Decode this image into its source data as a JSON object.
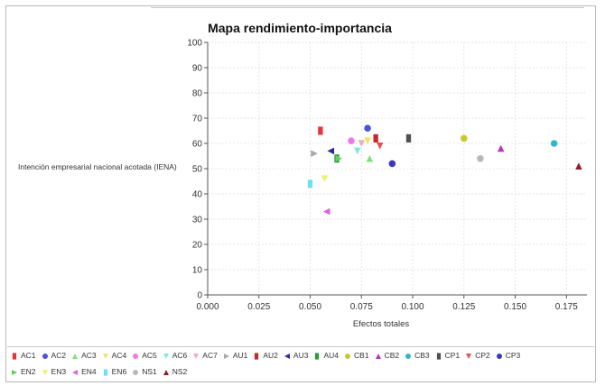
{
  "chart_data": {
    "type": "scatter",
    "title": "Mapa rendimiento-importancia",
    "xlabel": "Efectos totales",
    "ylabel": "Intención empresarial nacional acotada (IENA)",
    "xlim": [
      0,
      0.185
    ],
    "ylim": [
      0,
      100
    ],
    "x_ticks": [
      "0.000",
      "0.025",
      "0.050",
      "0.075",
      "0.100",
      "0.125",
      "0.150",
      "0.175"
    ],
    "y_ticks": [
      "0",
      "10",
      "20",
      "30",
      "40",
      "50",
      "60",
      "70",
      "80",
      "90",
      "100"
    ],
    "grid": true,
    "legend_position": "bottom",
    "points": [
      {
        "name": "AC1",
        "x": 0.055,
        "y": 65,
        "color": "#e8333a",
        "shape": "square"
      },
      {
        "name": "AC2",
        "x": 0.078,
        "y": 66,
        "color": "#4a55d6",
        "shape": "circle"
      },
      {
        "name": "AC3",
        "x": 0.079,
        "y": 54,
        "color": "#80e07a",
        "shape": "triangle-up"
      },
      {
        "name": "AC4",
        "x": 0.078,
        "y": 61,
        "color": "#f4e36a",
        "shape": "triangle-down"
      },
      {
        "name": "AC5",
        "x": 0.07,
        "y": 61,
        "color": "#ee78e8",
        "shape": "circle"
      },
      {
        "name": "AC6",
        "x": 0.073,
        "y": 57,
        "color": "#80e8e0",
        "shape": "triangle-down"
      },
      {
        "name": "AC7",
        "x": 0.075,
        "y": 60,
        "color": "#f0b0b0",
        "shape": "triangle-down"
      },
      {
        "name": "AU1",
        "x": 0.052,
        "y": 56,
        "color": "#a8a8a8",
        "shape": "triangle-right"
      },
      {
        "name": "AU2",
        "x": 0.082,
        "y": 62,
        "color": "#c82828",
        "shape": "square"
      },
      {
        "name": "AU3",
        "x": 0.06,
        "y": 57,
        "color": "#2a2a9a",
        "shape": "triangle-left"
      },
      {
        "name": "AU4",
        "x": 0.063,
        "y": 54,
        "color": "#2a9a3a",
        "shape": "square"
      },
      {
        "name": "CB1",
        "x": 0.125,
        "y": 62,
        "color": "#c8c830",
        "shape": "circle"
      },
      {
        "name": "CB2",
        "x": 0.143,
        "y": 58,
        "color": "#c030c0",
        "shape": "triangle-up"
      },
      {
        "name": "CB3",
        "x": 0.169,
        "y": 60,
        "color": "#30b8c8",
        "shape": "circle"
      },
      {
        "name": "CP1",
        "x": 0.098,
        "y": 62,
        "color": "#505050",
        "shape": "square"
      },
      {
        "name": "CP2",
        "x": 0.084,
        "y": 59,
        "color": "#e85050",
        "shape": "triangle-down"
      },
      {
        "name": "CP3",
        "x": 0.09,
        "y": 52,
        "color": "#3a3ab8",
        "shape": "circle"
      },
      {
        "name": "EN2",
        "x": 0.064,
        "y": 54,
        "color": "#60d060",
        "shape": "triangle-right"
      },
      {
        "name": "EN3",
        "x": 0.057,
        "y": 46,
        "color": "#f0f070",
        "shape": "triangle-down"
      },
      {
        "name": "EN4",
        "x": 0.058,
        "y": 33,
        "color": "#e060e0",
        "shape": "triangle-left"
      },
      {
        "name": "EN6",
        "x": 0.05,
        "y": 44,
        "color": "#70e0f0",
        "shape": "square"
      },
      {
        "name": "NS1",
        "x": 0.133,
        "y": 54,
        "color": "#b8b8b8",
        "shape": "circle"
      },
      {
        "name": "NS2",
        "x": 0.181,
        "y": 51,
        "color": "#9a1a2a",
        "shape": "triangle-up"
      }
    ]
  }
}
